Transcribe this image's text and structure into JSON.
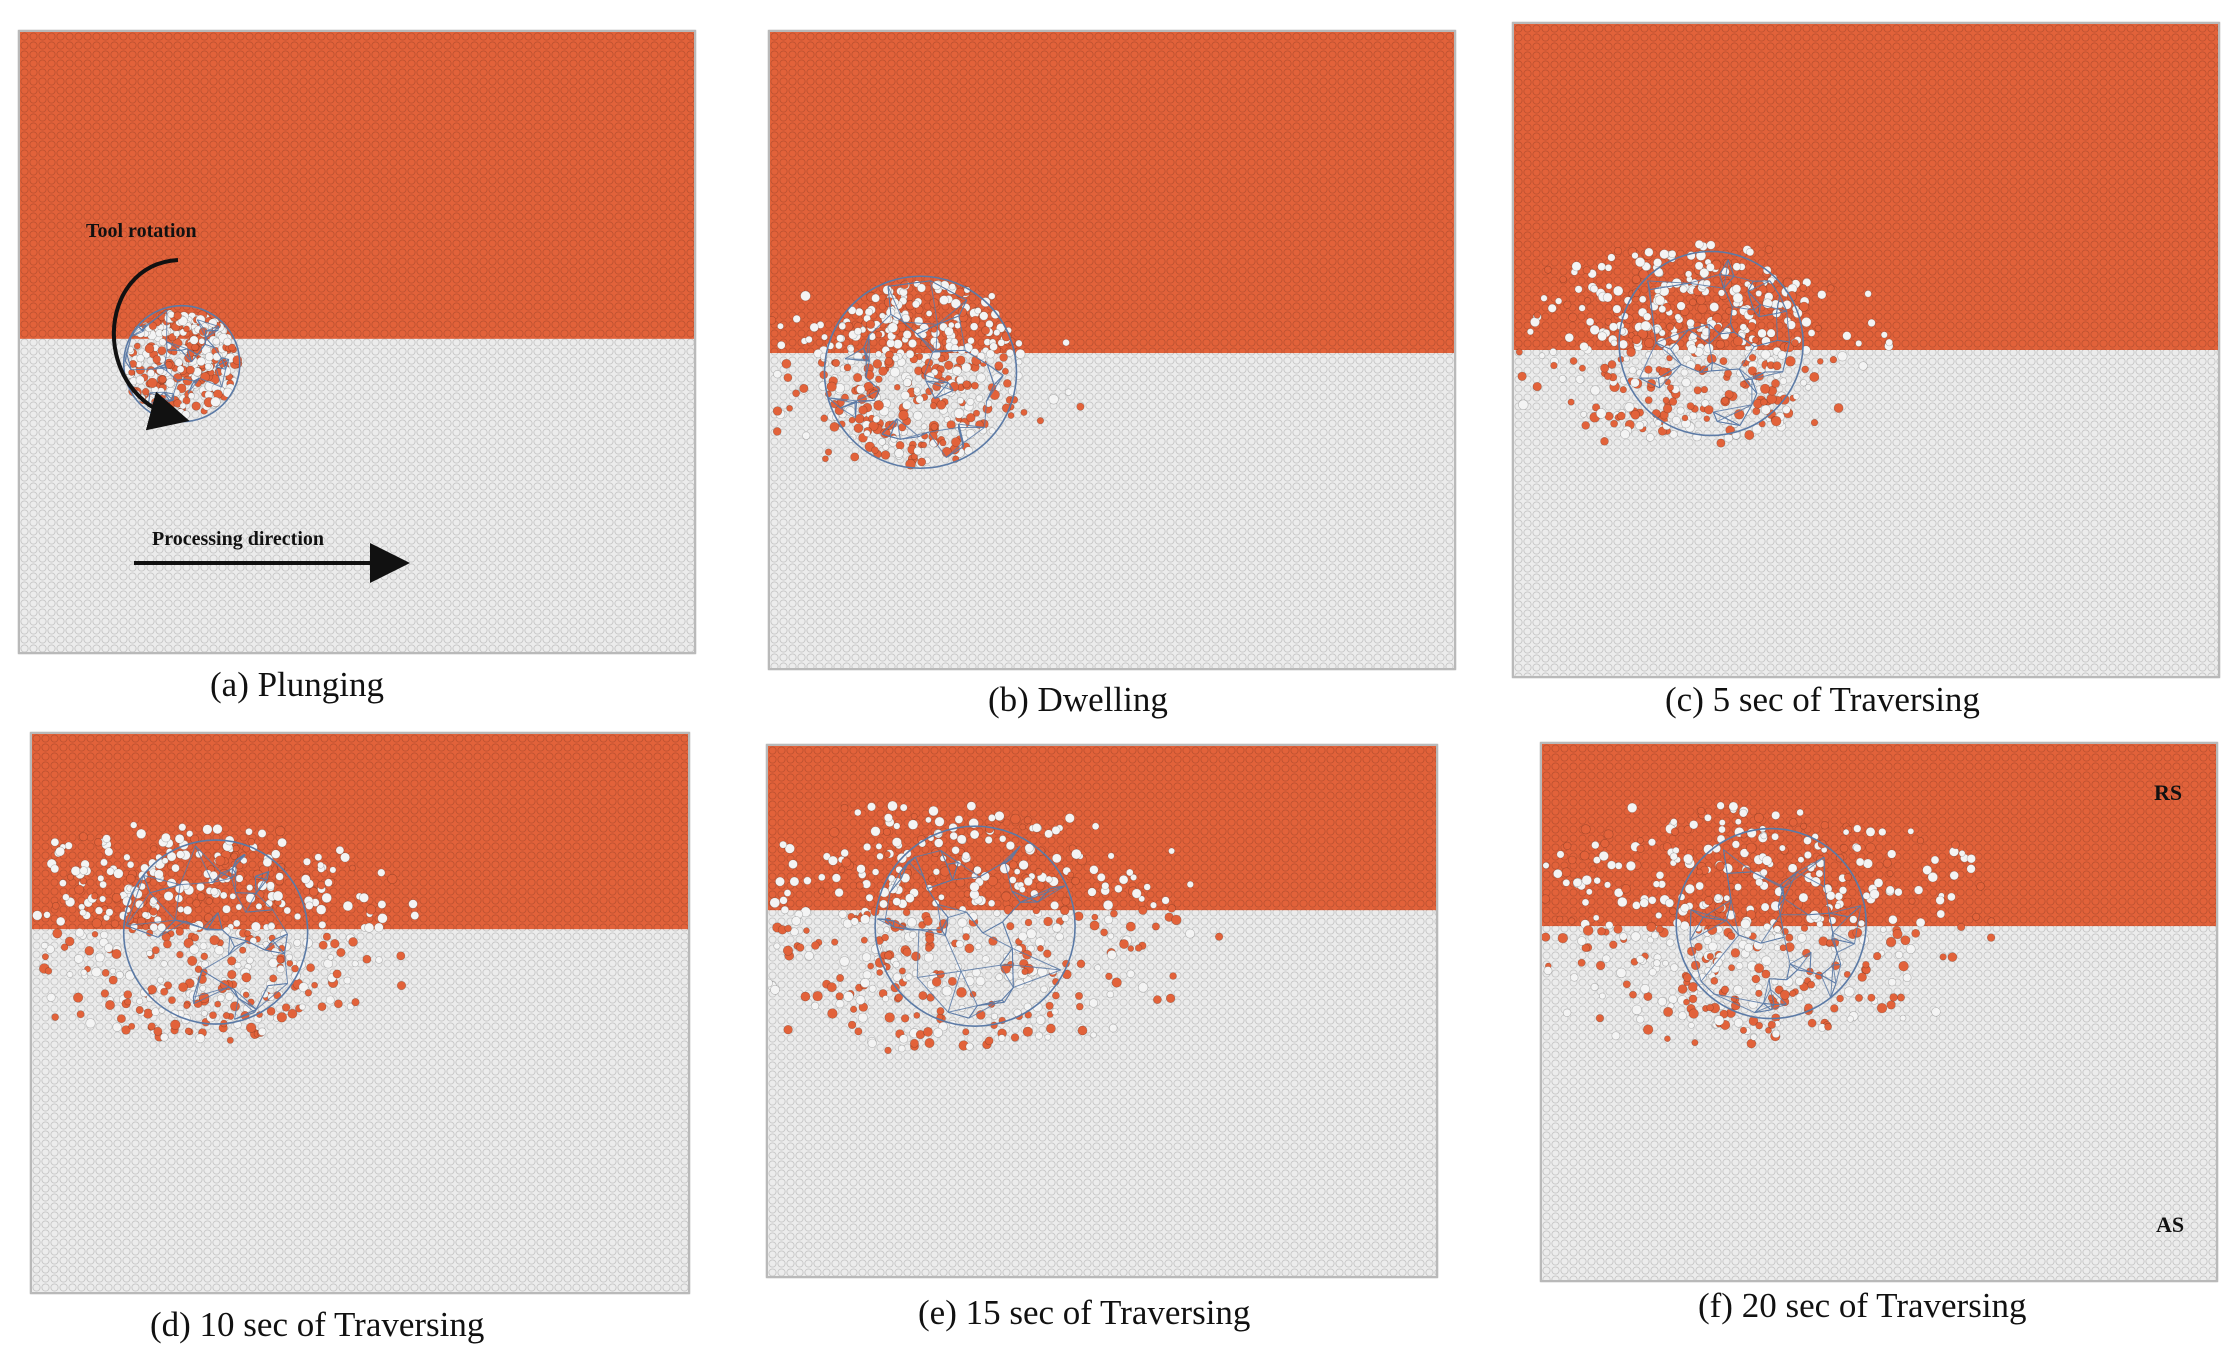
{
  "colors": {
    "retreating_material": "#e2623a",
    "advancing_material": "#ececec",
    "tool_mesh": "#5b7aa6",
    "particle_outline": "#b0b0b0"
  },
  "panels": [
    {
      "caption": "(a) Plunging"
    },
    {
      "caption": "(b) Dwelling"
    },
    {
      "caption": "(c) 5 sec of Traversing"
    },
    {
      "caption": "(d) 10 sec of Traversing"
    },
    {
      "caption": "(e) 15 sec of Traversing"
    },
    {
      "caption": "(f) 20 sec of Traversing"
    }
  ],
  "annotations": {
    "tool_rotation": "Tool rotation",
    "processing_direction": "Processing direction",
    "retreating_side": "RS",
    "advancing_side": "AS"
  },
  "icons": {
    "rotation_arrow": "curved-arrow-icon",
    "direction_arrow": "right-arrow-icon"
  }
}
